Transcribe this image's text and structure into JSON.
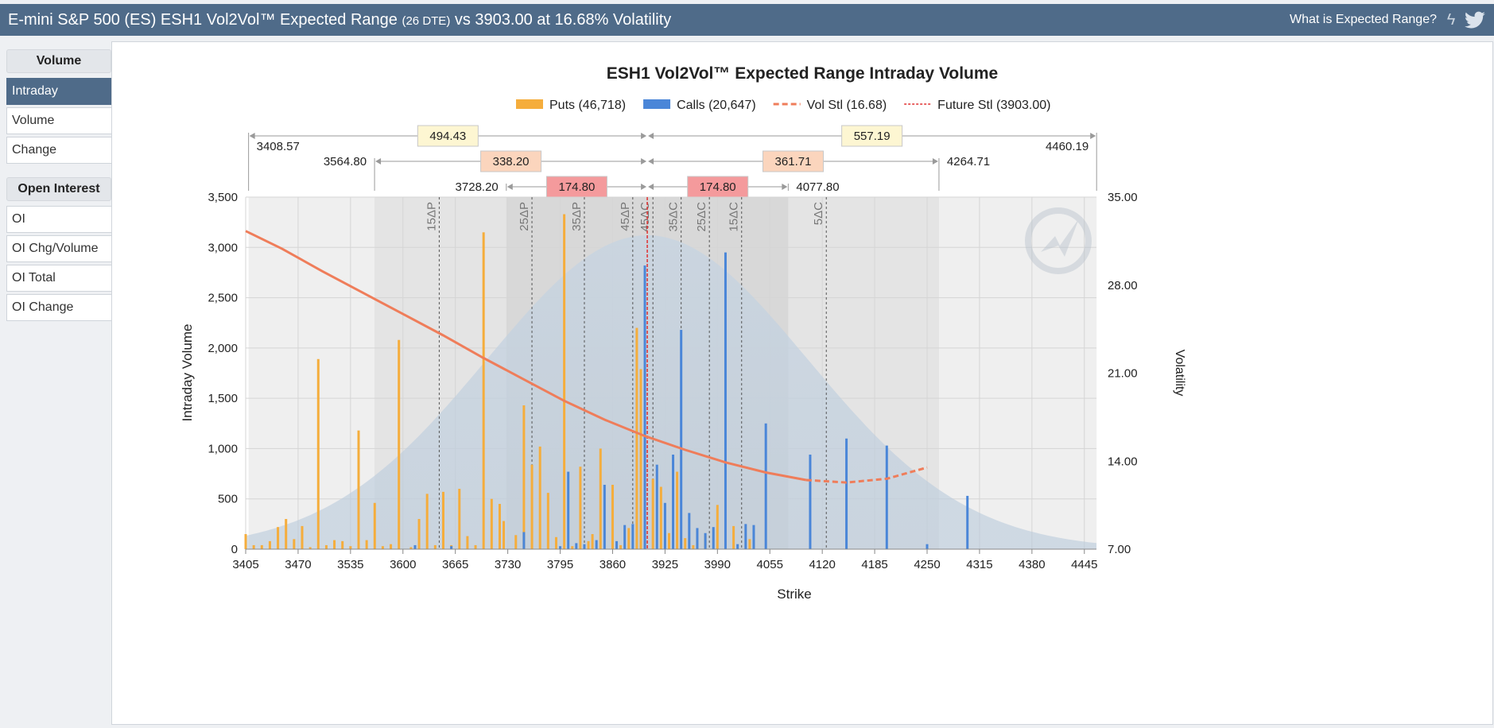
{
  "header": {
    "title_main": "E-mini S&P 500 (ES) ESH1 Vol2Vol™ Expected Range",
    "title_dte": "(26 DTE)",
    "title_tail": "vs 3903.00 at 16.68% Volatility",
    "help_link": "What is Expected Range?"
  },
  "sidebar": {
    "volume_header": "Volume",
    "volume_items": [
      "Intraday",
      "Volume",
      "Change"
    ],
    "oi_header": "Open Interest",
    "oi_items": [
      "OI",
      "OI Chg/Volume",
      "OI Total",
      "OI Change"
    ],
    "active": "Intraday"
  },
  "colors": {
    "puts": "#f5ad3c",
    "calls": "#4a86d8",
    "vol": "#ef7d5a",
    "future": "#e03030",
    "header": "#4f6b89"
  },
  "chart_data": {
    "type": "bar",
    "title": "ESH1 Vol2Vol™ Expected Range Intraday Volume",
    "xlabel": "Strike",
    "ylabel": "Intraday Volume",
    "y2label": "Volatility",
    "xlim": [
      3405,
      4460
    ],
    "ylim": [
      0,
      3500
    ],
    "y2lim": [
      7,
      35
    ],
    "x_ticks": [
      3405,
      3470,
      3535,
      3600,
      3665,
      3730,
      3795,
      3860,
      3925,
      3990,
      4055,
      4120,
      4185,
      4250,
      4315,
      4380,
      4445
    ],
    "y_ticks": [
      "0",
      "500",
      "1,000",
      "1,500",
      "2,000",
      "2,500",
      "3,000",
      "3,500"
    ],
    "y2_ticks": [
      "7.00",
      "14.00",
      "21.00",
      "28.00",
      "35.00"
    ],
    "legend": [
      {
        "key": "puts",
        "label": "Puts (46,718)"
      },
      {
        "key": "calls",
        "label": "Calls (20,647)"
      },
      {
        "key": "vol",
        "label": "Vol Stl (16.68)"
      },
      {
        "key": "future",
        "label": "Future Stl (3903.00)"
      }
    ],
    "future_settle": 3903,
    "ranges": [
      {
        "lower": 3408.57,
        "upper": 4460.19,
        "lower_label": "3408.57",
        "upper_label": "4460.19",
        "down": "494.43",
        "up": "557.19",
        "color": "#fdf6d2"
      },
      {
        "lower": 3564.8,
        "upper": 4264.71,
        "lower_label": "3564.80",
        "upper_label": "4264.71",
        "down": "338.20",
        "up": "361.71",
        "color": "#fbd5bd"
      },
      {
        "lower": 3728.2,
        "upper": 4077.8,
        "lower_label": "3728.20",
        "upper_label": "4077.80",
        "down": "174.80",
        "up": "174.80",
        "color": "#f49a9c"
      }
    ],
    "delta_lines": [
      {
        "label": "15ΔP",
        "x": 3645
      },
      {
        "label": "25ΔP",
        "x": 3760
      },
      {
        "label": "35ΔP",
        "x": 3825
      },
      {
        "label": "45ΔP",
        "x": 3885
      },
      {
        "label": "45ΔC",
        "x": 3910
      },
      {
        "label": "35ΔC",
        "x": 3945
      },
      {
        "label": "25ΔC",
        "x": 3980
      },
      {
        "label": "15ΔC",
        "x": 4020
      },
      {
        "label": "5ΔC",
        "x": 4125
      }
    ],
    "puts": [
      [
        3405,
        150
      ],
      [
        3415,
        40
      ],
      [
        3425,
        40
      ],
      [
        3435,
        80
      ],
      [
        3445,
        220
      ],
      [
        3455,
        300
      ],
      [
        3465,
        100
      ],
      [
        3475,
        230
      ],
      [
        3485,
        20
      ],
      [
        3495,
        1890
      ],
      [
        3505,
        40
      ],
      [
        3515,
        90
      ],
      [
        3525,
        80
      ],
      [
        3535,
        30
      ],
      [
        3545,
        1180
      ],
      [
        3555,
        90
      ],
      [
        3565,
        460
      ],
      [
        3575,
        30
      ],
      [
        3585,
        50
      ],
      [
        3595,
        2080
      ],
      [
        3610,
        20
      ],
      [
        3620,
        300
      ],
      [
        3630,
        550
      ],
      [
        3640,
        40
      ],
      [
        3650,
        570
      ],
      [
        3660,
        40
      ],
      [
        3670,
        600
      ],
      [
        3680,
        130
      ],
      [
        3690,
        40
      ],
      [
        3700,
        3150
      ],
      [
        3710,
        500
      ],
      [
        3720,
        450
      ],
      [
        3725,
        280
      ],
      [
        3740,
        140
      ],
      [
        3750,
        1430
      ],
      [
        3760,
        840
      ],
      [
        3770,
        1020
      ],
      [
        3780,
        560
      ],
      [
        3790,
        120
      ],
      [
        3800,
        3330
      ],
      [
        3810,
        30
      ],
      [
        3820,
        820
      ],
      [
        3830,
        80
      ],
      [
        3835,
        150
      ],
      [
        3845,
        1000
      ],
      [
        3860,
        640
      ],
      [
        3870,
        40
      ],
      [
        3880,
        210
      ],
      [
        3890,
        2200
      ],
      [
        3895,
        1790
      ],
      [
        3900,
        1040
      ],
      [
        3910,
        700
      ],
      [
        3920,
        620
      ],
      [
        3930,
        160
      ],
      [
        3940,
        770
      ],
      [
        3950,
        110
      ],
      [
        3960,
        40
      ],
      [
        3975,
        140
      ],
      [
        3990,
        440
      ],
      [
        4010,
        230
      ],
      [
        4030,
        100
      ]
    ],
    "calls": [
      [
        3615,
        40
      ],
      [
        3660,
        30
      ],
      [
        3750,
        170
      ],
      [
        3795,
        30
      ],
      [
        3805,
        770
      ],
      [
        3815,
        60
      ],
      [
        3825,
        50
      ],
      [
        3840,
        90
      ],
      [
        3850,
        640
      ],
      [
        3865,
        80
      ],
      [
        3875,
        240
      ],
      [
        3885,
        250
      ],
      [
        3900,
        2820
      ],
      [
        3915,
        840
      ],
      [
        3925,
        460
      ],
      [
        3935,
        940
      ],
      [
        3945,
        2180
      ],
      [
        3955,
        360
      ],
      [
        3965,
        210
      ],
      [
        3975,
        160
      ],
      [
        3985,
        220
      ],
      [
        4000,
        2950
      ],
      [
        4015,
        50
      ],
      [
        4025,
        250
      ],
      [
        4035,
        240
      ],
      [
        4050,
        1250
      ],
      [
        4105,
        940
      ],
      [
        4150,
        1100
      ],
      [
        4200,
        1030
      ],
      [
        4250,
        50
      ],
      [
        4300,
        530
      ]
    ],
    "vol_curve": [
      [
        3405,
        32.3
      ],
      [
        3450,
        30.9
      ],
      [
        3500,
        29.1
      ],
      [
        3550,
        27.4
      ],
      [
        3600,
        25.7
      ],
      [
        3650,
        24.0
      ],
      [
        3700,
        22.2
      ],
      [
        3750,
        20.5
      ],
      [
        3800,
        18.8
      ],
      [
        3850,
        17.3
      ],
      [
        3900,
        16.0
      ],
      [
        3950,
        14.9
      ],
      [
        4000,
        13.9
      ],
      [
        4050,
        13.1
      ],
      [
        4100,
        12.5
      ],
      [
        4150,
        12.3
      ],
      [
        4200,
        12.6
      ],
      [
        4250,
        13.5
      ]
    ],
    "vol_projected_from": 4120
  }
}
